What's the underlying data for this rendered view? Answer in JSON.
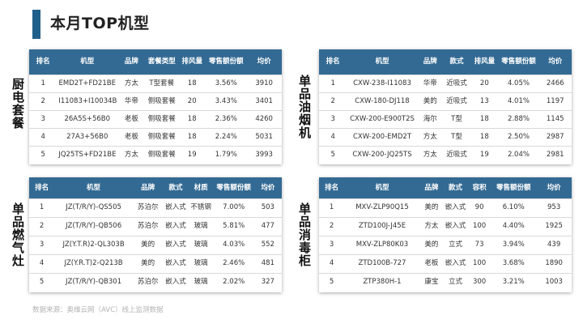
{
  "title": "本月TOP机型",
  "source": "数据来源：奥维云网（AVC）线上监测数据",
  "sections": [
    {
      "label": "厨电套餐",
      "headers": [
        "排名",
        "机型",
        "品牌",
        "套餐类型",
        "排风量",
        "零售额份额",
        "均价"
      ],
      "rows": [
        [
          "1",
          "EMD2T+FD21BE",
          "方太",
          "T型套餐",
          "18",
          "3.56%",
          "3910"
        ],
        [
          "2",
          "I11083+I10034B",
          "华帝",
          "侧吸套餐",
          "20",
          "3.43%",
          "3401"
        ],
        [
          "3",
          "26A5S+56B0",
          "老板",
          "侧吸套餐",
          "18",
          "2.36%",
          "4260"
        ],
        [
          "4",
          "27A3+56B0",
          "老板",
          "侧吸套餐",
          "18",
          "2.24%",
          "5031"
        ],
        [
          "5",
          "JQ25TS+FD21BE",
          "方太",
          "侧吸套餐",
          "19",
          "1.79%",
          "3993"
        ]
      ]
    },
    {
      "label": "单品油烟机",
      "headers": [
        "排名",
        "机型",
        "品牌",
        "款式",
        "排风量",
        "零售额份额",
        "均价"
      ],
      "rows": [
        [
          "1",
          "CXW-238-I11083",
          "华帝",
          "近吸式",
          "20",
          "4.05%",
          "2466"
        ],
        [
          "2",
          "CXW-180-DJ118",
          "美的",
          "近吸式",
          "13",
          "4.01%",
          "1197"
        ],
        [
          "3",
          "CXW-200-E900T2S",
          "海尔",
          "T型",
          "18",
          "2.88%",
          "1145"
        ],
        [
          "4",
          "CXW-200-EMD2T",
          "方太",
          "T型",
          "18",
          "2.50%",
          "2987"
        ],
        [
          "5",
          "CXW-200-JQ25TS",
          "方太",
          "近吸式",
          "19",
          "2.04%",
          "2981"
        ]
      ]
    },
    {
      "label": "单品燃气灶",
      "headers": [
        "排名",
        "机型",
        "品牌",
        "款式",
        "材质",
        "零售额份额",
        "均价"
      ],
      "rows": [
        [
          "1",
          "JZ(T/R/Y)-QS505",
          "苏泊尔",
          "嵌入式",
          "不锈钢",
          "7.00%",
          "503"
        ],
        [
          "2",
          "JZ(T/R/Y)-QB506",
          "苏泊尔",
          "嵌入式",
          "玻璃",
          "5.81%",
          "477"
        ],
        [
          "3",
          "JZ(Y.T.R)2-QL303B",
          "美的",
          "嵌入式",
          "玻璃",
          "4.03%",
          "552"
        ],
        [
          "4",
          "JZ(Y.R.T)2-Q213B",
          "美的",
          "嵌入式",
          "玻璃",
          "2.46%",
          "481"
        ],
        [
          "5",
          "JZ(T/R/Y)-QB301",
          "苏泊尔",
          "嵌入式",
          "玻璃",
          "2.02%",
          "327"
        ]
      ]
    },
    {
      "label": "单品消毒柜",
      "headers": [
        "排名",
        "机型",
        "品牌",
        "款式",
        "容积",
        "零售额份额",
        "均价"
      ],
      "rows": [
        [
          "1",
          "MXV-ZLP90Q15",
          "美的",
          "嵌入式",
          "90",
          "6.10%",
          "953"
        ],
        [
          "2",
          "ZTD100J-J45E",
          "方太",
          "嵌入式",
          "100",
          "4.40%",
          "1925"
        ],
        [
          "3",
          "MXV-ZLP80K03",
          "美的",
          "立式",
          "73",
          "3.94%",
          "439"
        ],
        [
          "4",
          "ZTD100B-727",
          "老板",
          "嵌入式",
          "100",
          "3.68%",
          "1890"
        ],
        [
          "5",
          "ZTP380H-1",
          "康宝",
          "立式",
          "300",
          "3.21%",
          "1003"
        ]
      ]
    }
  ]
}
